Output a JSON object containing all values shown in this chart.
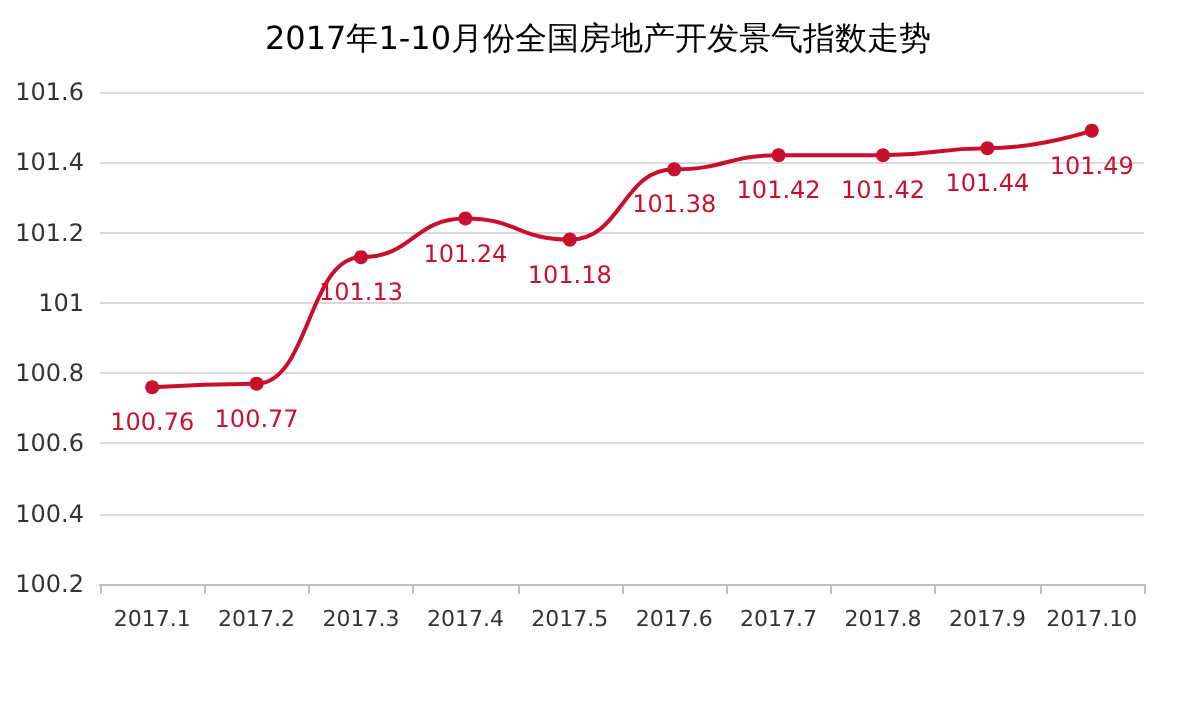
{
  "chart_data": {
    "type": "line",
    "title": "2017年1-10月份全国房地产开发景气指数走势",
    "categories": [
      "2017.1",
      "2017.2",
      "2017.3",
      "2017.4",
      "2017.5",
      "2017.6",
      "2017.7",
      "2017.8",
      "2017.9",
      "2017.10"
    ],
    "series": [
      {
        "color": "#c8102e",
        "values": [
          100.76,
          100.77,
          101.13,
          101.24,
          101.18,
          101.38,
          101.42,
          101.42,
          101.44,
          101.49
        ]
      }
    ],
    "ylim": [
      100.2,
      101.6
    ],
    "yticks": [
      100.2,
      100.4,
      100.6,
      100.8,
      101,
      101.2,
      101.4,
      101.6
    ],
    "grid": "y",
    "marker": "circle",
    "line_style": "solid",
    "data_labels": true
  }
}
